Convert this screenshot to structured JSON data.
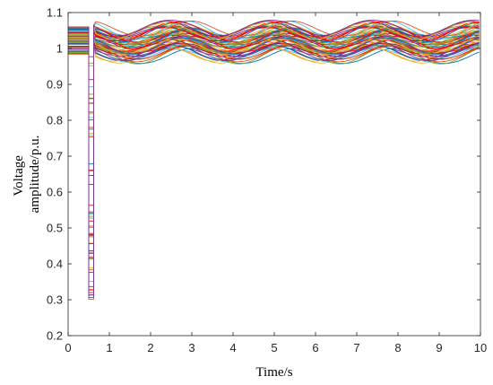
{
  "chart_data": {
    "type": "line",
    "title": "",
    "xlabel": "Time/s",
    "ylabel_lines": [
      "Voltage",
      "amplitude/p.u."
    ],
    "xlim": [
      0,
      10
    ],
    "ylim": [
      0.2,
      1.1
    ],
    "xticks": [
      "0",
      "1",
      "2",
      "3",
      "4",
      "5",
      "6",
      "7",
      "8",
      "9",
      "10"
    ],
    "yticks": [
      "0.2",
      "0.3",
      "0.4",
      "0.5",
      "0.6",
      "0.7",
      "0.8",
      "0.9",
      "1",
      "1.1"
    ],
    "grid": false,
    "legend": "none",
    "fault_interval": [
      0.5,
      0.62
    ],
    "oscillation_period": 2.45,
    "series_count": 60,
    "colors": [
      "#0072BD",
      "#D95319",
      "#EDB120",
      "#7E2F8E",
      "#77AC30",
      "#4DBEEE",
      "#A2142F",
      "#FF0000"
    ],
    "series_samples": [
      {
        "prefault": 1.06,
        "fault_min": 0.98,
        "trend": [
          [
            0.62,
            1.06
          ],
          [
            2.65,
            1.08
          ],
          [
            3.9,
            1.04
          ],
          [
            5.1,
            1.08
          ],
          [
            6.3,
            1.04
          ],
          [
            7.55,
            1.08
          ],
          [
            8.8,
            1.04
          ],
          [
            10,
            1.07
          ]
        ]
      },
      {
        "prefault": 1.03,
        "fault_min": 0.28,
        "trend": [
          [
            0.62,
            1.02
          ],
          [
            2.65,
            1.05
          ],
          [
            3.9,
            1.01
          ],
          [
            5.1,
            1.05
          ],
          [
            6.3,
            1.01
          ],
          [
            7.55,
            1.05
          ],
          [
            8.8,
            1.01
          ],
          [
            10,
            1.04
          ]
        ]
      },
      {
        "prefault": 1.0,
        "fault_min": 0.43,
        "trend": [
          [
            0.62,
            0.99
          ],
          [
            1.3,
            0.96
          ],
          [
            2.65,
            1.01
          ],
          [
            3.9,
            0.95
          ],
          [
            5.1,
            1.01
          ],
          [
            6.3,
            0.95
          ],
          [
            7.55,
            1.01
          ],
          [
            8.8,
            0.95
          ],
          [
            10,
            1.0
          ]
        ]
      },
      {
        "prefault": 0.99,
        "fault_min": 0.93,
        "trend": [
          [
            0.62,
            0.98
          ],
          [
            1.3,
            0.95
          ],
          [
            2.65,
            1.0
          ],
          [
            3.9,
            0.94
          ],
          [
            5.1,
            1.0
          ],
          [
            6.3,
            0.94
          ],
          [
            7.55,
            1.0
          ],
          [
            8.8,
            0.94
          ],
          [
            10,
            0.99
          ]
        ]
      }
    ]
  }
}
